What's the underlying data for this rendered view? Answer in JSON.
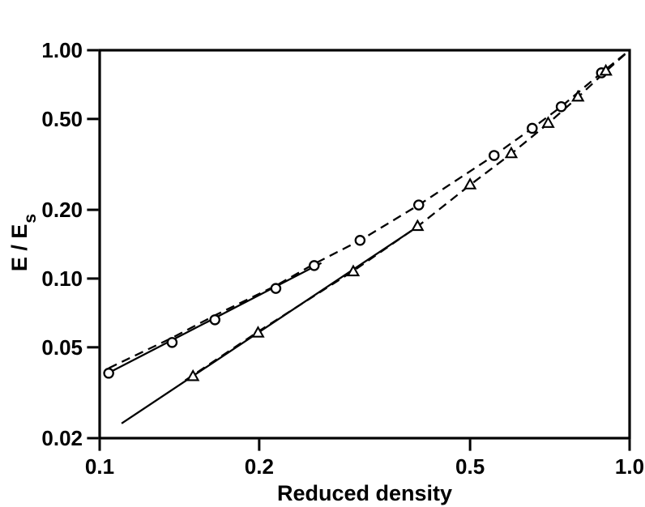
{
  "figure": {
    "background_color": "#ffffff",
    "line_color": "#000000",
    "marker_fill": "#ffffff"
  },
  "chart_data": {
    "type": "scatter",
    "title": "",
    "xlabel": "Reduced density",
    "ylabel_main": "E / E",
    "ylabel_sub": "s",
    "xscale": "log",
    "yscale": "log",
    "xlim": [
      0.1,
      1.0
    ],
    "ylim": [
      0.02,
      1.0
    ],
    "grid": false,
    "legend": "none",
    "x_ticks": [
      {
        "value": 0.1,
        "label": "0.1"
      },
      {
        "value": 0.2,
        "label": "0.2"
      },
      {
        "value": 0.5,
        "label": "0.5"
      },
      {
        "value": 1.0,
        "label": "1.0"
      }
    ],
    "y_ticks": [
      {
        "value": 1.0,
        "label": "1.00"
      },
      {
        "value": 0.5,
        "label": "0.50"
      },
      {
        "value": 0.2,
        "label": "0.20"
      },
      {
        "value": 0.1,
        "label": "0.10"
      },
      {
        "value": 0.05,
        "label": "0.05"
      },
      {
        "value": 0.02,
        "label": "0.02"
      }
    ],
    "series": [
      {
        "name": "circle-series",
        "marker": "circle",
        "points": [
          [
            0.104,
            0.0385
          ],
          [
            0.137,
            0.0525
          ],
          [
            0.165,
            0.066
          ],
          [
            0.215,
            0.0905
          ],
          [
            0.254,
            0.114
          ],
          [
            0.31,
            0.147
          ],
          [
            0.4,
            0.21
          ],
          [
            0.555,
            0.346
          ],
          [
            0.655,
            0.455
          ],
          [
            0.743,
            0.566
          ],
          [
            0.885,
            0.796
          ]
        ],
        "solid_fit_line": [
          [
            0.103,
            0.0382
          ],
          [
            0.262,
            0.117
          ]
        ],
        "dashed_curve": [
          [
            0.104,
            0.0405
          ],
          [
            0.137,
            0.055
          ],
          [
            0.165,
            0.069
          ],
          [
            0.215,
            0.093
          ],
          [
            0.254,
            0.116
          ],
          [
            0.31,
            0.147
          ],
          [
            0.4,
            0.21
          ],
          [
            0.555,
            0.346
          ],
          [
            0.655,
            0.455
          ],
          [
            0.743,
            0.566
          ],
          [
            0.885,
            0.796
          ],
          [
            1.0,
            1.0
          ]
        ]
      },
      {
        "name": "triangle-series",
        "marker": "triangle",
        "points": [
          [
            0.15,
            0.0372
          ],
          [
            0.199,
            0.0577
          ],
          [
            0.301,
            0.107
          ],
          [
            0.398,
            0.169
          ],
          [
            0.5,
            0.257
          ],
          [
            0.598,
            0.352
          ],
          [
            0.702,
            0.478
          ],
          [
            0.799,
            0.623
          ],
          [
            0.902,
            0.809
          ]
        ],
        "solid_fit_line": [
          [
            0.11,
            0.0232
          ],
          [
            0.4,
            0.17
          ]
        ],
        "dashed_curve": [
          [
            0.145,
            0.0358
          ],
          [
            0.199,
            0.0585
          ],
          [
            0.301,
            0.108
          ],
          [
            0.398,
            0.169
          ],
          [
            0.5,
            0.257
          ],
          [
            0.598,
            0.352
          ],
          [
            0.702,
            0.478
          ],
          [
            0.799,
            0.623
          ],
          [
            0.902,
            0.809
          ],
          [
            1.0,
            1.0
          ]
        ]
      }
    ]
  }
}
